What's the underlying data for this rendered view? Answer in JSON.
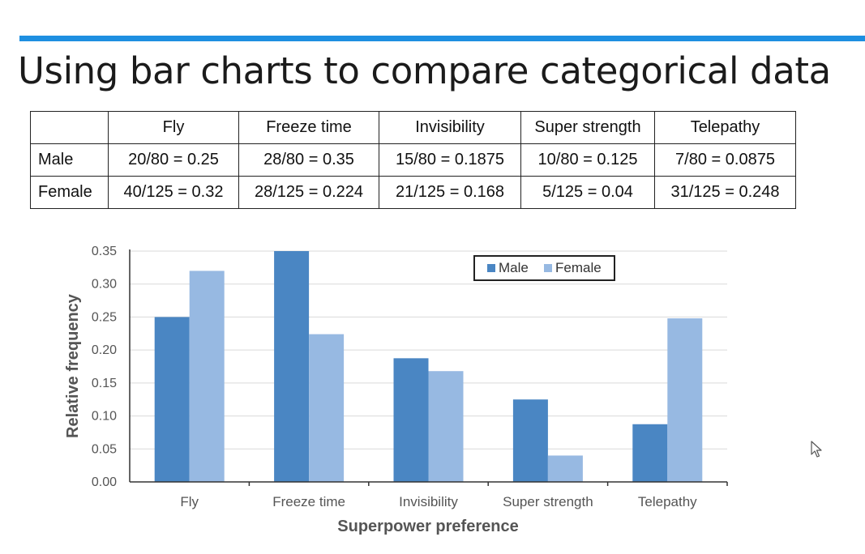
{
  "title": "Using bar charts to compare categorical data",
  "accent_color": "#1e8fe1",
  "table": {
    "headers": [
      "",
      "Fly",
      "Freeze time",
      "Invisibility",
      "Super strength",
      "Telepathy"
    ],
    "rows": [
      {
        "label": "Male",
        "cells": [
          "20/80 = 0.25",
          "28/80 = 0.35",
          "15/80 = 0.1875",
          "10/80 = 0.125",
          "7/80 = 0.0875"
        ]
      },
      {
        "label": "Female",
        "cells": [
          "40/125 = 0.32",
          "28/125 = 0.224",
          "21/125 = 0.168",
          "5/125 = 0.04",
          "31/125 = 0.248"
        ]
      }
    ]
  },
  "chart_data": {
    "type": "bar",
    "title": "",
    "xlabel": "Superpower preference",
    "ylabel": "Relative frequency",
    "categories": [
      "Fly",
      "Freeze time",
      "Invisibility",
      "Super strength",
      "Telepathy"
    ],
    "series": [
      {
        "name": "Male",
        "color": "#4a86c3",
        "values": [
          0.25,
          0.35,
          0.1875,
          0.125,
          0.0875
        ]
      },
      {
        "name": "Female",
        "color": "#97b9e2",
        "values": [
          0.32,
          0.224,
          0.168,
          0.04,
          0.248
        ]
      }
    ],
    "ylim": [
      0,
      0.35
    ],
    "yticks": [
      "0.00",
      "0.05",
      "0.10",
      "0.15",
      "0.20",
      "0.25",
      "0.30",
      "0.35"
    ],
    "grid": true,
    "legend": "top-right"
  },
  "cursor_icon": "mouse-pointer-icon"
}
